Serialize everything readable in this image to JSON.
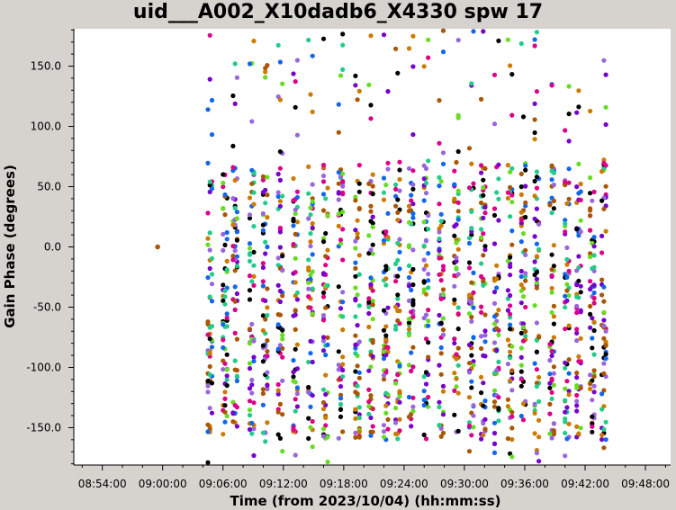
{
  "title": "uid___A002_X10dadb6_X4330 spw 17",
  "chart_data": {
    "type": "scatter",
    "title": "uid___A002_X10dadb6_X4330 spw 17",
    "xlabel": "Time (from 2023/10/04) (hh:mm:ss)",
    "ylabel": "Gain Phase (degrees)",
    "x_ticks": [
      "08:54:00",
      "09:00:00",
      "09:06:00",
      "09:12:00",
      "09:18:00",
      "09:24:00",
      "09:30:00",
      "09:36:00",
      "09:42:00",
      "09:48:00"
    ],
    "y_ticks": [
      "150.0",
      "100.0",
      "50.0",
      "0.0",
      "-50.0",
      "-100.0",
      "-150.0"
    ],
    "xlim": [
      "08:51:10",
      "09:50:30"
    ],
    "ylim": [
      -181,
      181
    ],
    "grid": false,
    "legend": "none",
    "colors": [
      "#000000",
      "#cc7a00",
      "#66dd22",
      "#9966dd",
      "#dd0088",
      "#1166ee",
      "#7700cc",
      "#22cc88",
      "#aa5500"
    ],
    "reference_point": {
      "time": "08:59:30",
      "phase": 0.0,
      "color": "#aa5500"
    },
    "time_groups": [
      "09:04:30",
      "09:06:00",
      "09:07:00",
      "09:08:40",
      "09:10:00",
      "09:11:30",
      "09:13:00",
      "09:14:30",
      "09:16:00",
      "09:17:30",
      "09:19:10",
      "09:20:30",
      "09:22:00",
      "09:23:10",
      "09:24:30",
      "09:26:00",
      "09:27:30",
      "09:29:00",
      "09:30:30",
      "09:31:40",
      "09:33:00",
      "09:34:20",
      "09:35:40",
      "09:37:00",
      "09:38:30",
      "09:40:00",
      "09:41:10",
      "09:42:30",
      "09:43:40"
    ],
    "points_per_group": 60,
    "phase_range": [
      -180,
      180
    ]
  }
}
